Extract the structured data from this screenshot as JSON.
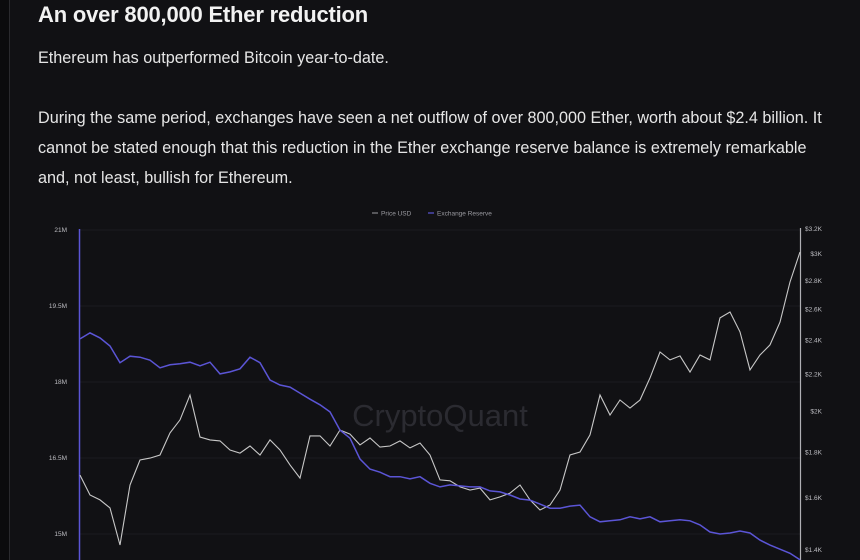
{
  "article": {
    "title": "An over 800,000 Ether reduction",
    "paragraph1": "Ethereum has outperformed Bitcoin year-to-date.",
    "paragraph2": "During the same period, exchanges have seen a net outflow of over 800,000 Ether, worth about $2.4 billion. It cannot be stated enough that this reduction in the Ether exchange reserve balance is extremely remarkable and, not least, bullish for Ethereum."
  },
  "chart_data": {
    "type": "line",
    "watermark": "CryptoQuant",
    "legend": {
      "placement": "top-center",
      "entries": [
        "Price USD",
        "Exchange Reserve"
      ]
    },
    "grid": true,
    "left_axis": {
      "series": "Exchange Reserve",
      "ylim": [
        15000000,
        21000000
      ],
      "ticks": [
        {
          "label": "21M",
          "value": 21
        },
        {
          "label": "19.5M",
          "value": 19.5
        },
        {
          "label": "18M",
          "value": 18
        },
        {
          "label": "16.5M",
          "value": 16.5
        },
        {
          "label": "15M",
          "value": 15
        }
      ],
      "unit": "millions"
    },
    "right_axis": {
      "series": "Price USD",
      "scale": "log",
      "ylim": [
        1400,
        3200
      ],
      "ticks": [
        {
          "label": "$3.2K",
          "value": 3200
        },
        {
          "label": "$3K",
          "value": 3000
        },
        {
          "label": "$2.8K",
          "value": 2800
        },
        {
          "label": "$2.6K",
          "value": 2600
        },
        {
          "label": "$2.4K",
          "value": 2400
        },
        {
          "label": "$2.2K",
          "value": 2200
        },
        {
          "label": "$2K",
          "value": 2000
        },
        {
          "label": "$1.8K",
          "value": 1800
        },
        {
          "label": "$1.6K",
          "value": 1600
        },
        {
          "label": "$1.4K",
          "value": 1400
        }
      ]
    },
    "series": [
      {
        "name": "Price USD",
        "color": "#c8c8c8",
        "axis": "right",
        "values": [
          1698,
          1613,
          1593,
          1560,
          1418,
          1655,
          1765,
          1774,
          1788,
          1893,
          1957,
          2087,
          1873,
          1859,
          1854,
          1811,
          1797,
          1830,
          1788,
          1859,
          1811,
          1743,
          1685,
          1878,
          1878,
          1830,
          1907,
          1887,
          1835,
          1868,
          1825,
          1830,
          1854,
          1821,
          1844,
          1788,
          1677,
          1673,
          1647,
          1634,
          1642,
          1593,
          1605,
          1621,
          1655,
          1593,
          1552,
          1572,
          1634,
          1788,
          1802,
          1883,
          2087,
          1982,
          2060,
          2018,
          2060,
          2181,
          2331,
          2284,
          2308,
          2214,
          2313,
          2284,
          2545,
          2584,
          2455,
          2226,
          2313,
          2374,
          2518,
          2792,
          3016
        ]
      },
      {
        "name": "Exchange Reserve",
        "color": "#5b55d6",
        "axis": "left",
        "values": [
          18.85,
          18.97,
          18.87,
          18.71,
          18.38,
          18.51,
          18.49,
          18.43,
          18.28,
          18.34,
          18.36,
          18.39,
          18.32,
          18.39,
          18.16,
          18.2,
          18.26,
          18.49,
          18.38,
          18.04,
          17.94,
          17.9,
          17.78,
          17.66,
          17.55,
          17.41,
          17.05,
          16.89,
          16.48,
          16.28,
          16.22,
          16.13,
          16.13,
          16.09,
          16.13,
          16.0,
          15.93,
          15.97,
          15.95,
          15.93,
          15.93,
          15.85,
          15.83,
          15.77,
          15.69,
          15.67,
          15.59,
          15.51,
          15.51,
          15.55,
          15.57,
          15.34,
          15.24,
          15.26,
          15.28,
          15.34,
          15.3,
          15.34,
          15.24,
          15.26,
          15.28,
          15.26,
          15.18,
          15.04,
          15.0,
          15.02,
          15.06,
          15.02,
          14.88,
          14.78,
          14.7,
          14.62,
          14.49
        ]
      }
    ]
  }
}
